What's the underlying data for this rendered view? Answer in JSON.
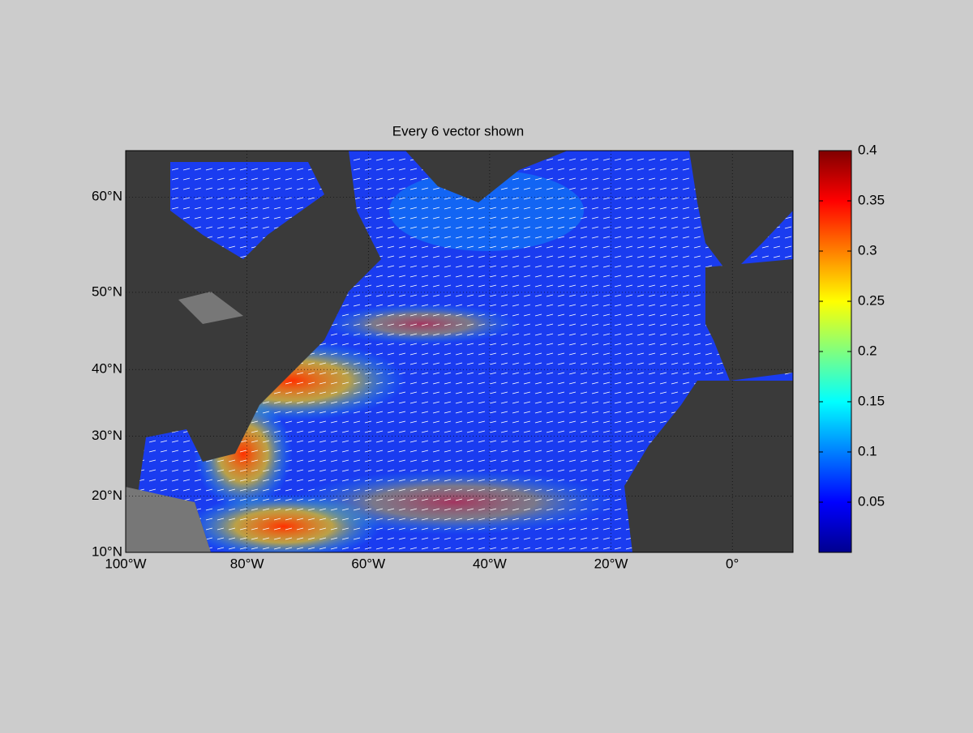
{
  "chart_data": {
    "type": "map",
    "title": "Every 6 vector shown",
    "xlim": [
      -100,
      10
    ],
    "ylim": [
      10,
      64
    ],
    "xticks": [
      {
        "value": -100,
        "label": "100°W"
      },
      {
        "value": -80,
        "label": "80°W"
      },
      {
        "value": -60,
        "label": "60°W"
      },
      {
        "value": -40,
        "label": "40°W"
      },
      {
        "value": -20,
        "label": "20°W"
      },
      {
        "value": 0,
        "label": "0°"
      }
    ],
    "yticks": [
      {
        "value": 10,
        "label": "10°N"
      },
      {
        "value": 20,
        "label": "20°N"
      },
      {
        "value": 30,
        "label": "30°N"
      },
      {
        "value": 40,
        "label": "40°N"
      },
      {
        "value": 50,
        "label": "50°N"
      },
      {
        "value": 60,
        "label": "60°N"
      }
    ],
    "grid": true,
    "colorbar": {
      "lim": [
        0,
        0.4
      ],
      "ticks": [
        0.05,
        0.1,
        0.15,
        0.2,
        0.25,
        0.3,
        0.35,
        0.4
      ]
    }
  }
}
